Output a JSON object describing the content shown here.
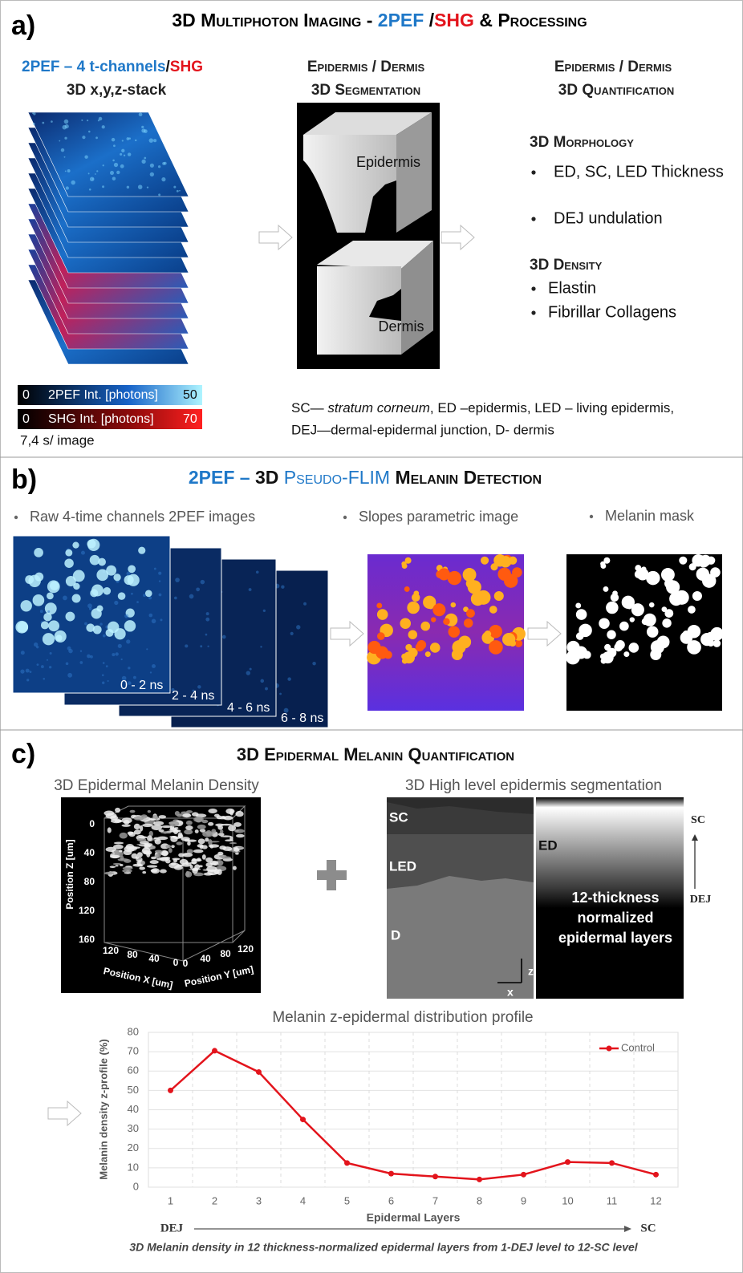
{
  "panel_a": {
    "label": "a)",
    "title": [
      "3D Multiphoton Imaging - ",
      "2PEF",
      " /",
      "SHG",
      " & Processing"
    ],
    "stack_heading": [
      "2PEF – 4 t-channels",
      "/",
      "SHG",
      "3D x,y,z-stack"
    ],
    "segmentation_heading": [
      "Epidermis / Dermis",
      "3D Segmentation"
    ],
    "segmentation_labels": [
      "Epidermis",
      "Dermis"
    ],
    "quantification_heading": [
      "Epidermis / Dermis",
      "3D Quantification"
    ],
    "morphology": {
      "title": "3D Morphology",
      "items": [
        "ED, SC, LED Thickness",
        "DEJ undulation"
      ]
    },
    "density": {
      "title": "3D Density",
      "items": [
        "Elastin",
        "Fibrillar Collagens"
      ]
    },
    "colorbars": [
      {
        "min": 0,
        "label": "2PEF Int. [photons]",
        "max": 50
      },
      {
        "min": 0,
        "label": "SHG Int. [photons]",
        "max": 70
      }
    ],
    "acquisition": "7,4 s/ image",
    "abbreviations": [
      "SC— ",
      "stratum corneum",
      ", ED –epidermis, LED – living epidermis,",
      "DEJ—dermal-epidermal junction, D- dermis"
    ]
  },
  "panel_b": {
    "label": "b)",
    "title": [
      "2PEF –",
      " 3D ",
      "Pseudo-FLIM",
      " Melanin Detection"
    ],
    "steps": [
      "Raw 4-time channels 2PEF images",
      "Slopes parametric image",
      "Melanin mask"
    ],
    "channels": [
      "0 - 2 ns",
      "2 - 4 ns",
      "4 - 6 ns",
      "6 - 8 ns"
    ]
  },
  "panel_c": {
    "label": "c)",
    "title": "3D Epidermal Melanin Quantification",
    "density_plot": {
      "title": "3D Epidermal Melanin Density",
      "z_label": "Position Z [um]",
      "x_label": "Position X [um]",
      "y_label": "Position Y [um]",
      "z_ticks": [
        0,
        40,
        80,
        120,
        160
      ],
      "x_ticks": [
        120,
        80,
        40,
        0
      ],
      "y_ticks": [
        0,
        40,
        80,
        120
      ]
    },
    "segmentation": {
      "title": "3D High level epidermis segmentation",
      "layers": [
        "SC",
        "LED",
        "D"
      ],
      "axes": [
        "z",
        "x"
      ],
      "ed_label": "ED",
      "normalized_label": [
        "12-thickness",
        "normalized",
        "epidermal layers"
      ],
      "arrow_ends": [
        "SC",
        "DEJ"
      ]
    },
    "axis_ends": [
      "DEJ",
      "SC"
    ],
    "caption": "3D Melanin density in 12 thickness-normalized epidermal layers from 1-DEJ level to 12-SC level"
  },
  "chart_data": {
    "type": "line",
    "title": "Melanin z-epidermal distribution profile",
    "x_label": "Epidermal Layers",
    "y_label": "Melanin density z-profile (%)",
    "categories": [
      "1",
      "2",
      "3",
      "4",
      "5",
      "6",
      "7",
      "8",
      "9",
      "10",
      "11",
      "12"
    ],
    "series": [
      {
        "name": "Control",
        "color": "#e3141c",
        "values": [
          50,
          70.5,
          59.5,
          35,
          12.5,
          7,
          5.5,
          4,
          6.5,
          13,
          12.5,
          6.5
        ]
      }
    ],
    "ylim": [
      0,
      80
    ],
    "yticks": [
      0,
      10,
      20,
      30,
      40,
      50,
      60,
      70,
      80
    ],
    "grid": true,
    "legend": "upper right"
  }
}
